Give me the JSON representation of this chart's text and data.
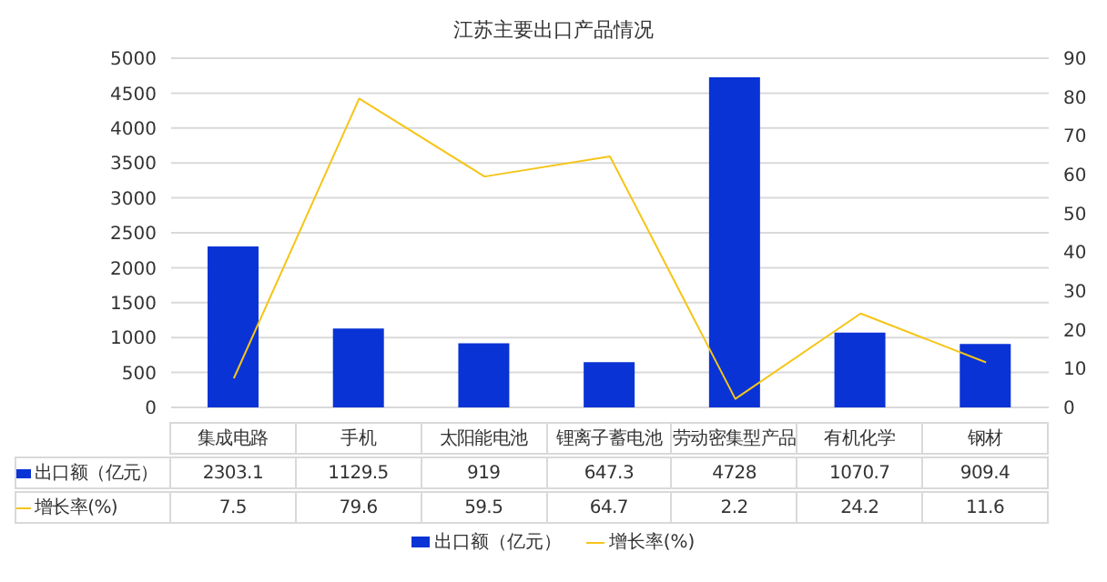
{
  "chart_data": {
    "type": "bar",
    "title": "江苏主要出口产品情况",
    "categories": [
      "集成电路",
      "手机",
      "太阳能电池",
      "锂离子蓄电池",
      "劳动密集型产品",
      "有机化学",
      "钢材"
    ],
    "series": [
      {
        "name": "出口额（亿元）",
        "color": "#0a33d6",
        "values": [
          2303.1,
          1129.5,
          919,
          647.3,
          4728,
          1070.7,
          909.4
        ]
      },
      {
        "name": "增长率(%)",
        "type": "line",
        "axis": "y2",
        "color": "#f5c518",
        "values": [
          7.5,
          79.6,
          59.5,
          64.7,
          2.2,
          24.2,
          11.6
        ]
      }
    ],
    "ylim": [
      0,
      5000
    ],
    "yticks": [
      0,
      500,
      1000,
      1500,
      2000,
      2500,
      3000,
      3500,
      4000,
      4500,
      5000
    ],
    "y2lim": [
      0,
      90
    ],
    "y2ticks": [
      0,
      10,
      20,
      30,
      40,
      50,
      60,
      70,
      80,
      90
    ],
    "grid": "y",
    "legend": "bottom",
    "data_labels": true,
    "marker": "none"
  }
}
